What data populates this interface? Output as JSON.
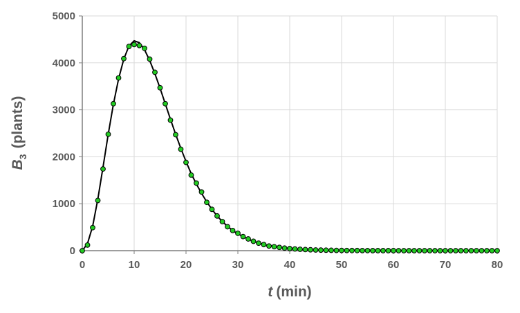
{
  "chart_data": {
    "type": "scatter",
    "xlabel": {
      "symbol": "t",
      "unit": "(min)"
    },
    "ylabel": {
      "symbol": "B",
      "subscript": "3",
      "unit": "(plants)"
    },
    "x": [
      0,
      1,
      2,
      3,
      4,
      5,
      6,
      7,
      8,
      9,
      10,
      11,
      12,
      13,
      14,
      15,
      16,
      17,
      18,
      19,
      20,
      21,
      22,
      23,
      24,
      25,
      26,
      27,
      28,
      29,
      30,
      31,
      32,
      33,
      34,
      35,
      36,
      37,
      38,
      39,
      40,
      41,
      42,
      43,
      44,
      45,
      46,
      47,
      48,
      49,
      50,
      51,
      52,
      53,
      54,
      55,
      56,
      57,
      58,
      59,
      60,
      61,
      62,
      63,
      64,
      65,
      66,
      67,
      68,
      69,
      70,
      71,
      72,
      73,
      74,
      75,
      76,
      77,
      78,
      79,
      80
    ],
    "series": [
      {
        "style": "line",
        "color": "#000000",
        "values": [
          0,
          150,
          520,
          1100,
          1780,
          2480,
          3120,
          3660,
          4080,
          4360,
          4470,
          4430,
          4280,
          4050,
          3770,
          3460,
          3130,
          2800,
          2480,
          2180,
          1900,
          1640,
          1420,
          1220,
          1040,
          880,
          740,
          620,
          520,
          430,
          360,
          300,
          245,
          200,
          165,
          135,
          110,
          90,
          72,
          58,
          47,
          38,
          30,
          24,
          19,
          15,
          12,
          10,
          8,
          6,
          5,
          4,
          3,
          3,
          2,
          2,
          1,
          1,
          1,
          1,
          1,
          0,
          0,
          0,
          0,
          0,
          0,
          0,
          0,
          0,
          0,
          0,
          0,
          0,
          0,
          0,
          0,
          0,
          0,
          0,
          0
        ]
      },
      {
        "style": "markers",
        "color": "#22cc22",
        "values": [
          0,
          120,
          490,
          1070,
          1740,
          2480,
          3130,
          3680,
          4090,
          4350,
          4390,
          4370,
          4310,
          4080,
          3800,
          3470,
          3130,
          2780,
          2470,
          2160,
          1880,
          1610,
          1440,
          1250,
          1030,
          880,
          740,
          620,
          510,
          430,
          370,
          300,
          250,
          200,
          160,
          130,
          100,
          85,
          70,
          55,
          45,
          37,
          30,
          24,
          19,
          15,
          12,
          10,
          8,
          6,
          5,
          4,
          3,
          3,
          2,
          2,
          1,
          1,
          1,
          1,
          1,
          0,
          0,
          0,
          0,
          0,
          0,
          0,
          0,
          0,
          0,
          0,
          0,
          0,
          0,
          0,
          0,
          0,
          0,
          0,
          0
        ]
      }
    ],
    "xlim": [
      0,
      80
    ],
    "xticks": [
      0,
      10,
      20,
      30,
      40,
      50,
      60,
      70,
      80
    ],
    "ylim": [
      0,
      5000
    ],
    "yticks": [
      0,
      1000,
      2000,
      3000,
      4000,
      5000
    ],
    "grid": true
  }
}
